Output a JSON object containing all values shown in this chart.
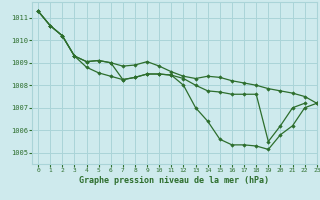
{
  "title": "Graphe pression niveau de la mer (hPa)",
  "bg_color": "#ceeaed",
  "grid_color": "#aad4d8",
  "line_color": "#2d6e2d",
  "xlim": [
    -0.5,
    23
  ],
  "ylim": [
    1004.5,
    1011.7
  ],
  "yticks": [
    1005,
    1006,
    1007,
    1008,
    1009,
    1010,
    1011
  ],
  "xticks": [
    0,
    1,
    2,
    3,
    4,
    5,
    6,
    7,
    8,
    9,
    10,
    11,
    12,
    13,
    14,
    15,
    16,
    17,
    18,
    19,
    20,
    21,
    22,
    23
  ],
  "series": [
    {
      "x": [
        0,
        1,
        2,
        3,
        4,
        5,
        6,
        7,
        8,
        9,
        10,
        11,
        12,
        13,
        14,
        15,
        16,
        17,
        18,
        19,
        20,
        21,
        22,
        23
      ],
      "y": [
        1011.3,
        1010.65,
        1010.2,
        1009.3,
        1008.8,
        1008.55,
        1008.4,
        1008.25,
        1008.35,
        1008.5,
        1008.5,
        1008.45,
        1008.0,
        1007.0,
        1006.4,
        1005.6,
        1005.35,
        1005.35,
        1005.3,
        1005.15,
        1005.8,
        1006.2,
        1007.0,
        1007.2
      ]
    },
    {
      "x": [
        0,
        1,
        2,
        3,
        4,
        5,
        6,
        7,
        8,
        9,
        10,
        11,
        12,
        13,
        14,
        15,
        16,
        17,
        18,
        19,
        20,
        21,
        22,
        23
      ],
      "y": [
        1011.3,
        1010.65,
        1010.2,
        1009.3,
        1009.05,
        1009.1,
        1009.0,
        1008.85,
        1008.9,
        1009.05,
        1008.85,
        1008.6,
        1008.4,
        1008.3,
        1008.4,
        1008.35,
        1008.2,
        1008.1,
        1008.0,
        1007.85,
        1007.75,
        1007.65,
        1007.5,
        1007.2
      ]
    },
    {
      "x": [
        0,
        1,
        2,
        3,
        4,
        5,
        6,
        7,
        8,
        9,
        10,
        11,
        12,
        13,
        14,
        15,
        16,
        17,
        18,
        19,
        20,
        21,
        22
      ],
      "y": [
        1011.3,
        1010.65,
        1010.2,
        1009.3,
        1009.05,
        1009.1,
        1009.0,
        1008.25,
        1008.35,
        1008.5,
        1008.5,
        1008.45,
        1008.3,
        1008.0,
        1007.75,
        1007.7,
        1007.6,
        1007.6,
        1007.6,
        1005.5,
        1006.2,
        1007.0,
        1007.2
      ]
    }
  ]
}
